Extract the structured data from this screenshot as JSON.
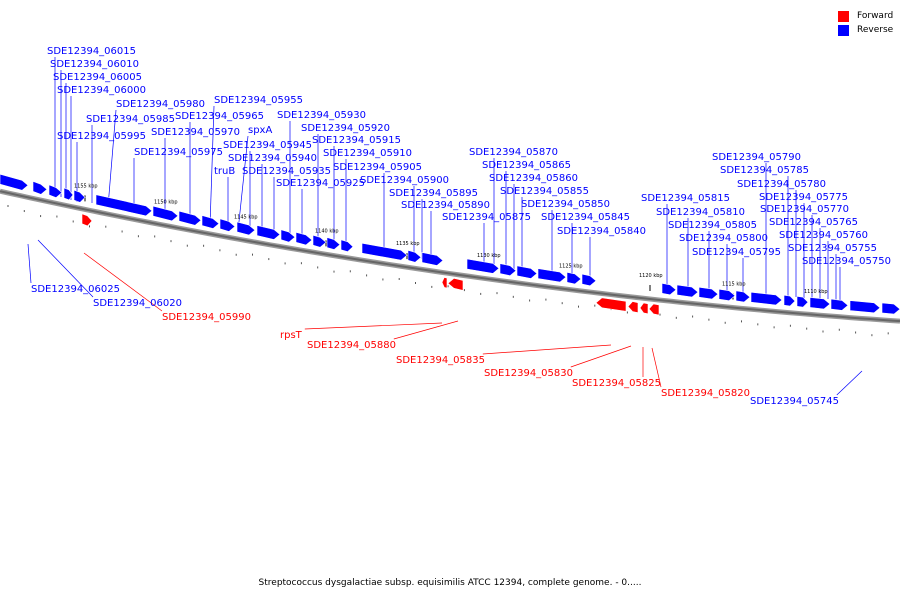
{
  "legend": {
    "forward_label": "Forward",
    "reverse_label": "Reverse",
    "forward_color": "#ff0000",
    "reverse_color": "#0000ff"
  },
  "caption": "Streptococcus dysgalactiae subsp. equisimilis ATCC 12394, complete genome. - 0.....",
  "colors": {
    "forward": "#ff0000",
    "reverse": "#0000ff",
    "axis": "#666666"
  },
  "ticks": [
    "1155 kbp",
    "1150 kbp",
    "1145 kbp",
    "1140 kbp",
    "1135 kbp",
    "1130 kbp",
    "1125 kbp",
    "1120 kbp",
    "1115 kbp",
    "1110 kbp"
  ],
  "genes": [
    {
      "label": "SDE12394_06015",
      "strand": "reverse"
    },
    {
      "label": "SDE12394_06010",
      "strand": "reverse"
    },
    {
      "label": "SDE12394_06005",
      "strand": "reverse"
    },
    {
      "label": "SDE12394_06000",
      "strand": "reverse"
    },
    {
      "label": "SDE12394_05995",
      "strand": "reverse"
    },
    {
      "label": "SDE12394_05985",
      "strand": "reverse"
    },
    {
      "label": "SDE12394_05980",
      "strand": "reverse"
    },
    {
      "label": "SDE12394_05975",
      "strand": "reverse"
    },
    {
      "label": "SDE12394_05970",
      "strand": "reverse"
    },
    {
      "label": "SDE12394_05965",
      "strand": "reverse"
    },
    {
      "label": "SDE12394_05955",
      "strand": "reverse"
    },
    {
      "label": "truB",
      "strand": "reverse"
    },
    {
      "label": "spxA",
      "strand": "reverse"
    },
    {
      "label": "SDE12394_05945",
      "strand": "reverse"
    },
    {
      "label": "SDE12394_05940",
      "strand": "reverse"
    },
    {
      "label": "SDE12394_05935",
      "strand": "reverse"
    },
    {
      "label": "SDE12394_05930",
      "strand": "reverse"
    },
    {
      "label": "SDE12394_05925",
      "strand": "reverse"
    },
    {
      "label": "SDE12394_05920",
      "strand": "reverse"
    },
    {
      "label": "SDE12394_05915",
      "strand": "reverse"
    },
    {
      "label": "SDE12394_05910",
      "strand": "reverse"
    },
    {
      "label": "SDE12394_05905",
      "strand": "reverse"
    },
    {
      "label": "SDE12394_05900",
      "strand": "reverse"
    },
    {
      "label": "SDE12394_05895",
      "strand": "reverse"
    },
    {
      "label": "SDE12394_05890",
      "strand": "reverse"
    },
    {
      "label": "SDE12394_05875",
      "strand": "reverse"
    },
    {
      "label": "SDE12394_05870",
      "strand": "reverse"
    },
    {
      "label": "SDE12394_05865",
      "strand": "reverse"
    },
    {
      "label": "SDE12394_05860",
      "strand": "reverse"
    },
    {
      "label": "SDE12394_05855",
      "strand": "reverse"
    },
    {
      "label": "SDE12394_05850",
      "strand": "reverse"
    },
    {
      "label": "SDE12394_05845",
      "strand": "reverse"
    },
    {
      "label": "SDE12394_05840",
      "strand": "reverse"
    },
    {
      "label": "SDE12394_05815",
      "strand": "reverse"
    },
    {
      "label": "SDE12394_05810",
      "strand": "reverse"
    },
    {
      "label": "SDE12394_05805",
      "strand": "reverse"
    },
    {
      "label": "SDE12394_05800",
      "strand": "reverse"
    },
    {
      "label": "SDE12394_05795",
      "strand": "reverse"
    },
    {
      "label": "SDE12394_05790",
      "strand": "reverse"
    },
    {
      "label": "SDE12394_05785",
      "strand": "reverse"
    },
    {
      "label": "SDE12394_05780",
      "strand": "reverse"
    },
    {
      "label": "SDE12394_05775",
      "strand": "reverse"
    },
    {
      "label": "SDE12394_05770",
      "strand": "reverse"
    },
    {
      "label": "SDE12394_05765",
      "strand": "reverse"
    },
    {
      "label": "SDE12394_05760",
      "strand": "reverse"
    },
    {
      "label": "SDE12394_05755",
      "strand": "reverse"
    },
    {
      "label": "SDE12394_05750",
      "strand": "reverse"
    },
    {
      "label": "SDE12394_06025",
      "strand": "reverse"
    },
    {
      "label": "SDE12394_06020",
      "strand": "reverse"
    },
    {
      "label": "SDE12394_05745",
      "strand": "reverse"
    },
    {
      "label": "SDE12394_05990",
      "strand": "forward"
    },
    {
      "label": "rpsT",
      "strand": "forward"
    },
    {
      "label": "SDE12394_05880",
      "strand": "forward"
    },
    {
      "label": "SDE12394_05835",
      "strand": "forward"
    },
    {
      "label": "SDE12394_05830",
      "strand": "forward"
    },
    {
      "label": "SDE12394_05825",
      "strand": "forward"
    },
    {
      "label": "SDE12394_05820",
      "strand": "forward"
    }
  ]
}
